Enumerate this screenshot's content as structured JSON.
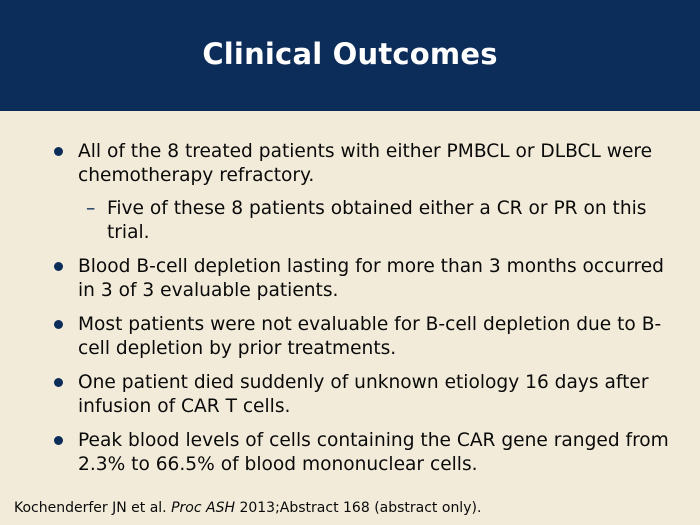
{
  "title": "Clinical Outcomes",
  "bullets": {
    "b1": "All of the 8 treated patients with either PMBCL or DLBCL were chemotherapy refractory.",
    "b1_sub": "Five of these 8 patients obtained either a CR or PR on this trial.",
    "b2": "Blood B-cell depletion lasting for more than 3 months occurred in 3 of 3 evaluable patients.",
    "b3": "Most patients were not evaluable for B-cell depletion due to B-cell depletion by prior treatments.",
    "b4": "One patient died suddenly of unknown etiology 16 days after infusion of CAR T cells.",
    "b5": "Peak blood levels of cells containing the CAR gene ranged from 2.3% to 66.5% of blood mononuclear cells."
  },
  "sub_marker": "–",
  "citation": {
    "authors": "Kochenderfer JN et al.",
    "journal": "Proc ASH",
    "details": "2013;Abstract 168 (abstract only)."
  },
  "colors": {
    "header_bg": "#0c2c5a",
    "body_bg": "#f2ebd9",
    "bullet": "#0c2c5a"
  }
}
